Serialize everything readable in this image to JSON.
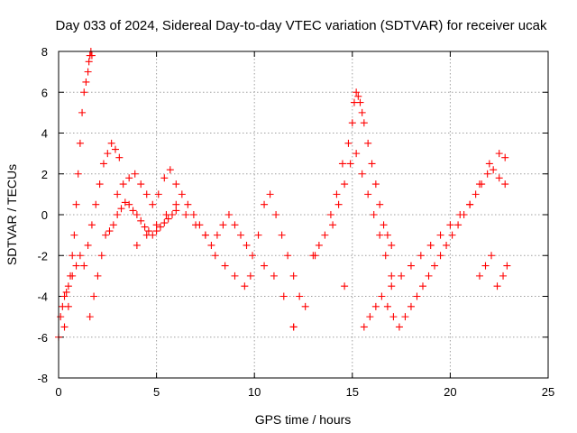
{
  "chart_data": {
    "type": "scatter",
    "title": "Day 033 of 2024, Sidereal Day-to-day VTEC variation (SDTVAR) for receiver ucak",
    "xlabel": "GPS time / hours",
    "ylabel": "SDTVAR / TECUs",
    "xlim": [
      0,
      25
    ],
    "ylim": [
      -8,
      8
    ],
    "x_ticks": [
      0,
      5,
      10,
      15,
      20,
      25
    ],
    "y_ticks": [
      -8,
      -6,
      -4,
      -2,
      0,
      2,
      4,
      6,
      8
    ],
    "x_tick_labels": [
      "0",
      "5",
      "10",
      "15",
      "20",
      "25"
    ],
    "y_tick_labels": [
      "-8",
      "-6",
      "-4",
      "-2",
      "0",
      "2",
      "4",
      "6",
      "8"
    ],
    "grid": true,
    "marker": "+",
    "marker_color": "#ff0000",
    "series": [
      {
        "name": "ucak",
        "x": [
          0.0,
          0.1,
          0.2,
          0.3,
          0.4,
          0.5,
          0.6,
          0.7,
          0.8,
          0.9,
          1.0,
          1.1,
          1.2,
          1.3,
          1.4,
          1.5,
          1.55,
          1.6,
          1.65,
          1.7,
          0.3,
          0.5,
          0.7,
          0.9,
          1.1,
          1.3,
          1.5,
          1.7,
          1.9,
          2.1,
          2.3,
          2.5,
          2.7,
          2.9,
          3.1,
          1.6,
          1.8,
          2.0,
          2.2,
          2.4,
          2.6,
          2.8,
          3.0,
          3.2,
          3.4,
          3.6,
          3.8,
          4.0,
          4.2,
          4.4,
          4.6,
          4.8,
          5.0,
          5.2,
          5.4,
          5.6,
          5.8,
          6.0,
          3.0,
          3.3,
          3.6,
          3.9,
          4.2,
          4.5,
          4.8,
          5.1,
          5.4,
          5.7,
          6.0,
          6.3,
          6.6,
          6.9,
          7.2,
          7.5,
          7.8,
          8.1,
          8.4,
          8.7,
          9.0,
          9.3,
          9.6,
          9.9,
          4.0,
          4.5,
          5.0,
          5.5,
          6.0,
          6.5,
          7.0,
          7.5,
          8.0,
          8.5,
          9.0,
          9.5,
          9.8,
          10.2,
          10.5,
          10.8,
          11.1,
          11.4,
          11.7,
          12.0,
          12.3,
          12.6,
          10.5,
          11.0,
          11.5,
          12.0,
          13.0,
          13.3,
          13.6,
          13.9,
          14.2,
          14.5,
          14.8,
          15.0,
          15.1,
          15.2,
          15.3,
          15.4,
          15.5,
          15.6,
          15.8,
          16.0,
          16.2,
          16.4,
          16.6,
          16.8,
          17.0,
          14.0,
          14.3,
          14.6,
          14.9,
          15.2,
          15.5,
          15.8,
          16.1,
          16.4,
          16.7,
          17.0,
          15.6,
          15.9,
          16.2,
          16.5,
          16.8,
          17.1,
          17.4,
          17.7,
          18.0,
          18.3,
          18.6,
          18.9,
          19.2,
          19.5,
          19.8,
          20.1,
          20.4,
          20.7,
          21.0,
          21.3,
          21.6,
          21.9,
          22.2,
          22.5,
          22.8,
          17.0,
          17.5,
          18.0,
          18.5,
          19.0,
          19.5,
          20.0,
          20.5,
          21.0,
          21.5,
          22.0,
          22.5,
          22.8,
          21.5,
          21.8,
          22.1,
          22.4,
          22.7,
          22.9,
          12.0,
          13.1,
          14.6
        ],
        "y": [
          -6.0,
          -5.0,
          -4.5,
          -4.0,
          -3.8,
          -3.5,
          -3.0,
          -2.0,
          -1.0,
          0.5,
          2.0,
          3.5,
          5.0,
          6.0,
          6.5,
          7.0,
          7.5,
          7.8,
          8.0,
          7.8,
          -5.5,
          -4.5,
          -3.0,
          -2.5,
          -2.0,
          -2.5,
          -1.5,
          -0.5,
          0.5,
          1.5,
          2.5,
          3.0,
          3.5,
          3.2,
          2.8,
          -5.0,
          -4.0,
          -3.0,
          -2.0,
          -1.0,
          -0.8,
          -0.5,
          0.0,
          0.3,
          0.6,
          0.5,
          0.2,
          0.0,
          -0.3,
          -0.6,
          -0.8,
          -1.0,
          -0.8,
          -0.6,
          -0.4,
          -0.2,
          0.0,
          0.2,
          1.0,
          1.5,
          1.8,
          2.0,
          1.5,
          1.0,
          0.5,
          1.0,
          1.8,
          2.2,
          1.5,
          1.0,
          0.5,
          0.0,
          -0.5,
          -1.0,
          -1.5,
          -1.0,
          -0.5,
          0.0,
          -0.5,
          -1.0,
          -1.5,
          -2.0,
          -1.5,
          -1.0,
          -0.5,
          0.0,
          0.5,
          0.0,
          -0.5,
          -1.0,
          -2.0,
          -2.5,
          -3.0,
          -3.5,
          -3.0,
          -1.0,
          0.5,
          1.0,
          0.0,
          -1.0,
          -2.0,
          -3.0,
          -4.0,
          -4.5,
          -2.5,
          -3.0,
          -4.0,
          -5.5,
          -2.0,
          -1.5,
          -1.0,
          0.0,
          1.0,
          2.5,
          3.5,
          4.5,
          5.5,
          6.0,
          5.8,
          5.5,
          5.0,
          4.5,
          3.5,
          2.5,
          1.5,
          0.5,
          -0.5,
          -1.0,
          -1.5,
          -0.5,
          0.5,
          1.5,
          2.5,
          3.0,
          2.0,
          1.0,
          0.0,
          -1.0,
          -2.0,
          -3.0,
          -5.5,
          -5.0,
          -4.5,
          -4.0,
          -4.5,
          -5.0,
          -5.5,
          -5.0,
          -4.5,
          -4.0,
          -3.5,
          -3.0,
          -2.5,
          -2.0,
          -1.5,
          -1.0,
          -0.5,
          0.0,
          0.5,
          1.0,
          1.5,
          2.0,
          2.2,
          1.8,
          1.5,
          -3.5,
          -3.0,
          -2.5,
          -2.0,
          -1.5,
          -1.0,
          -0.5,
          0.0,
          0.5,
          1.5,
          2.5,
          3.0,
          2.8,
          -3.0,
          -2.5,
          -2.0,
          -3.5,
          -3.0,
          -2.5,
          -5.5,
          -2.0,
          -3.5
        ]
      }
    ]
  }
}
